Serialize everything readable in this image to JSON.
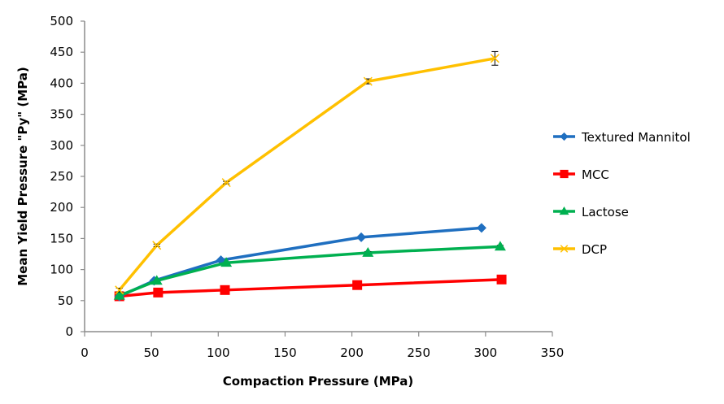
{
  "chart_data": {
    "type": "line",
    "title": "",
    "xlabel": "Compaction Pressure (MPa)",
    "ylabel": "Mean Yield Pressure \"Py\" (MPa)",
    "xlim": [
      0,
      350
    ],
    "ylim": [
      0,
      500
    ],
    "xticks": [
      0,
      50,
      100,
      150,
      200,
      250,
      300,
      350
    ],
    "yticks": [
      0,
      50,
      100,
      150,
      200,
      250,
      300,
      350,
      400,
      450,
      500
    ],
    "grid": false,
    "legend_position": "right",
    "series": [
      {
        "name": "Textured Mannitol",
        "color": "#1f6fc0",
        "marker": "diamond",
        "x": [
          26,
          52,
          102,
          207,
          297
        ],
        "y": [
          57,
          82,
          115,
          152,
          167
        ],
        "error": [
          0,
          0,
          0,
          0,
          0
        ]
      },
      {
        "name": "MCC",
        "color": "#ff0000",
        "marker": "square",
        "x": [
          26,
          55,
          105,
          204,
          312
        ],
        "y": [
          57,
          63,
          67,
          75,
          84
        ],
        "error": [
          0,
          0,
          0,
          0,
          0
        ]
      },
      {
        "name": "Lactose",
        "color": "#00b050",
        "marker": "triangle",
        "x": [
          26,
          54,
          106,
          212,
          311
        ],
        "y": [
          58,
          82,
          111,
          127,
          137
        ],
        "error": [
          0,
          0,
          0,
          2,
          2
        ]
      },
      {
        "name": "DCP",
        "color": "#ffc000",
        "marker": "x",
        "x": [
          26,
          54,
          106,
          212,
          307
        ],
        "y": [
          67,
          139,
          240,
          403,
          440
        ],
        "error": [
          3,
          2,
          2,
          4,
          11
        ]
      }
    ]
  }
}
